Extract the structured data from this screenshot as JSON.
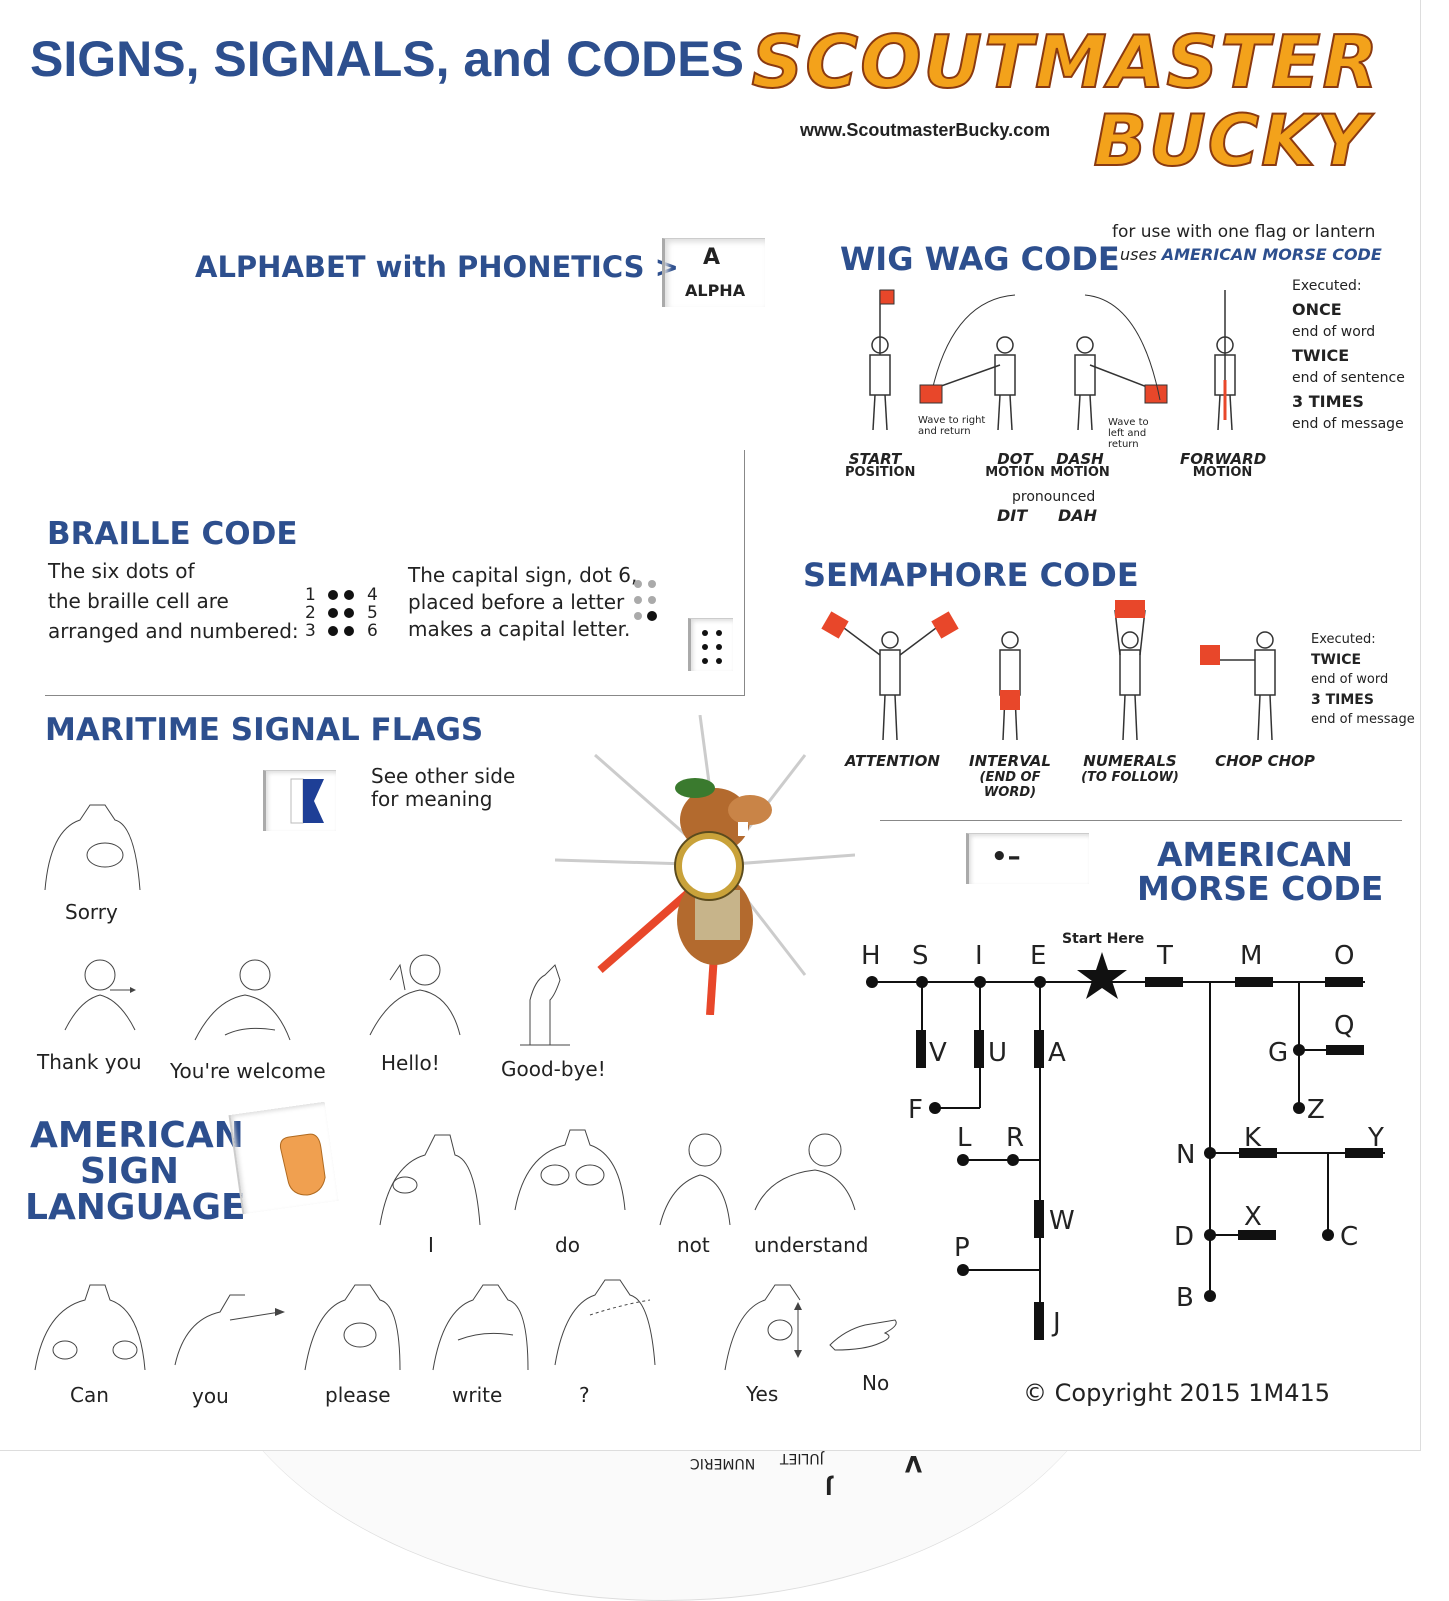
{
  "header": {
    "title": "SIGNS, SIGNALS, and CODES",
    "logo_line1": "SCOUTMASTER",
    "logo_line2": "BUCKY",
    "website": "www.ScoutmasterBucky.com"
  },
  "alphabet": {
    "heading": "ALPHABET with PHONETICS >",
    "window_letter": "A",
    "window_word": "ALPHA"
  },
  "wigwag": {
    "heading": "WIG WAG CODE",
    "note_line1": "for use with one flag or lantern",
    "note_line2_prefix": "uses ",
    "note_line2_highlight": "AMERICAN MORSE CODE",
    "executed_label": "Executed:",
    "executed": [
      {
        "count": "ONCE",
        "meaning": "end of word"
      },
      {
        "count": "TWICE",
        "meaning": "end of sentence"
      },
      {
        "count": "3 TIMES",
        "meaning": "end of message"
      }
    ],
    "wave_right": "Wave to right and return",
    "wave_left": "Wave to left and return",
    "positions": [
      {
        "line1": "START",
        "line2": "POSITION"
      },
      {
        "line1": "DOT",
        "line2": "MOTION"
      },
      {
        "line1": "DASH",
        "line2": "MOTION"
      },
      {
        "line1": "FORWARD",
        "line2": "MOTION"
      }
    ],
    "pronounced": "pronounced",
    "dit": "DIT",
    "dah": "DAH"
  },
  "braille": {
    "heading": "BRAILLE CODE",
    "text_line1": "The six dots of",
    "text_line2": "the braille cell are",
    "text_line3": "arranged and numbered:",
    "nums_left": [
      "1",
      "2",
      "3"
    ],
    "nums_right": [
      "4",
      "5",
      "6"
    ],
    "capital_line1": "The capital sign, dot 6,",
    "capital_line2": "placed before a letter",
    "capital_line3": "makes a capital letter."
  },
  "semaphore": {
    "heading": "SEMAPHORE CODE",
    "executed_label": "Executed:",
    "executed": [
      {
        "count": "TWICE",
        "meaning": "end of word"
      },
      {
        "count": "3 TIMES",
        "meaning": "end of message"
      }
    ],
    "positions": [
      {
        "line1": "ATTENTION",
        "line2": ""
      },
      {
        "line1": "INTERVAL",
        "line2": "(END OF WORD)"
      },
      {
        "line1": "NUMERALS",
        "line2": "(TO FOLLOW)"
      },
      {
        "line1": "CHOP CHOP",
        "line2": ""
      }
    ]
  },
  "maritime": {
    "heading": "MARITIME SIGNAL  FLAGS",
    "note_line1": "See other side",
    "note_line2": "for meaning"
  },
  "asl": {
    "heading_line1": "AMERICAN",
    "heading_line2": "SIGN",
    "heading_line3": "LANGUAGE",
    "signs_row0": [
      "Sorry"
    ],
    "signs_row1": [
      "Thank you",
      "You're welcome",
      "Hello!",
      "Good-bye!"
    ],
    "signs_row2": [
      "I",
      "do",
      "not",
      "understand"
    ],
    "signs_row3": [
      "Can",
      "you",
      "please",
      "write",
      "?",
      "Yes",
      "No"
    ]
  },
  "morse": {
    "heading_line1": "AMERICAN",
    "heading_line2": "MORSE CODE",
    "window_code": "•–",
    "start_here": "Start Here",
    "letters": [
      "H",
      "S",
      "I",
      "E",
      "T",
      "M",
      "O",
      "V",
      "U",
      "A",
      "Q",
      "G",
      "F",
      "Z",
      "L",
      "R",
      "K",
      "Y",
      "N",
      "W",
      "X",
      "D",
      "C",
      "P",
      "B",
      "J"
    ]
  },
  "copyright": "© Copyright 2015 1M415",
  "wheel_text": {
    "numeric": "NUMERIC",
    "juliet": "JULIET",
    "v": "V",
    "j": "J"
  },
  "colors": {
    "heading_blue": "#2d4f8e",
    "logo_orange": "#f3a21b",
    "flag_red": "#e8472a"
  }
}
